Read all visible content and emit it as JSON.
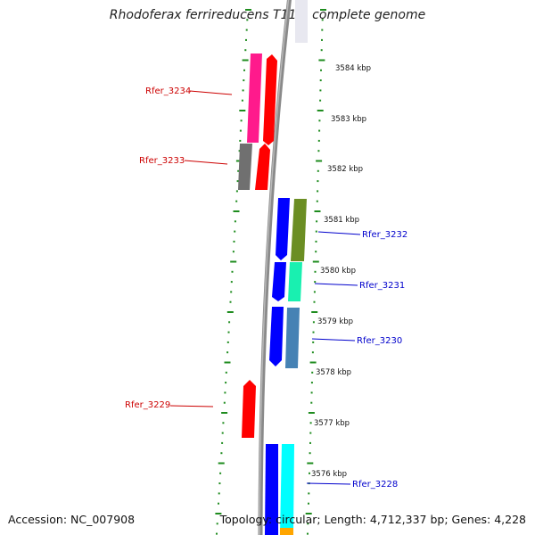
{
  "title": "Rhodoferax ferrireducens T118, complete genome",
  "footer": {
    "accession": "Accession: NC_007908",
    "topology": "Topology: circular; Length: 4,712,337 bp; Genes: 4,228"
  },
  "kbp_ticks": [
    "3584 kbp",
    "3583 kbp",
    "3582 kbp",
    "3581 kbp",
    "3580 kbp",
    "3579 kbp",
    "3578 kbp",
    "3577 kbp",
    "3576 kbp"
  ],
  "gene_labels": [
    {
      "text": "Rfer_3234",
      "color": "#cc0000"
    },
    {
      "text": "Rfer_3233",
      "color": "#cc0000"
    },
    {
      "text": "Rfer_3232",
      "color": "#0000cc"
    },
    {
      "text": "Rfer_3231",
      "color": "#0000cc"
    },
    {
      "text": "Rfer_3230",
      "color": "#0000cc"
    },
    {
      "text": "Rfer_3229",
      "color": "#cc0000"
    },
    {
      "text": "Rfer_3228",
      "color": "#0000cc"
    }
  ],
  "colors": {
    "backbone": "#8a8a8a",
    "tick_marks": "#1e8c1e",
    "reverse_strand_gene": "#ff0000",
    "forward_strand_gene": "#0000ff"
  }
}
